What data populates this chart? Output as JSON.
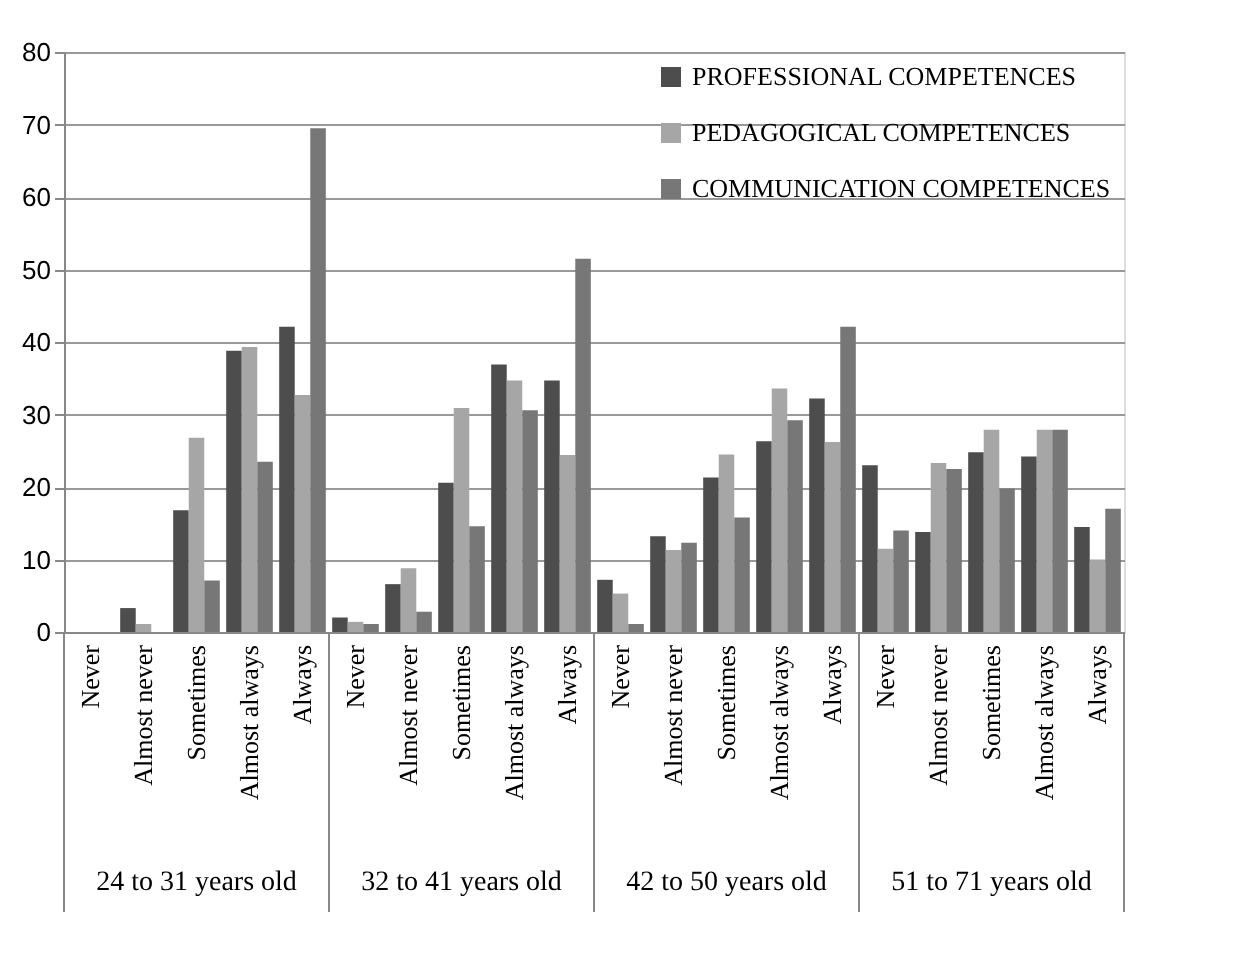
{
  "chart_data": {
    "type": "bar",
    "categories": [
      "Never",
      "Almost never",
      "Sometimes",
      "Almost always",
      "Always",
      "Never",
      "Almost never",
      "Sometimes",
      "Almost always",
      "Always",
      "Never",
      "Almost never",
      "Sometimes",
      "Almost always",
      "Always",
      "Never",
      "Almost never",
      "Sometimes",
      "Almost always",
      "Always"
    ],
    "annotations": [
      "24 to 31 years old",
      "32 to 41 years old",
      "42 to 50 years old",
      "51 to 71 years old"
    ],
    "series": [
      {
        "name": "PROFESSIONAL COMPETENCES",
        "color": "#4d4d4d",
        "values": [
          0,
          3.3,
          16.8,
          38.8,
          42.1,
          2,
          6.6,
          20.6,
          36.9,
          34.7,
          7.2,
          13.2,
          21.3,
          26.3,
          32.2,
          23,
          13.8,
          24.8,
          24.2,
          14.5
        ]
      },
      {
        "name": "PEDAGOGICAL COMPETENCES",
        "color": "#a6a6a6",
        "values": [
          0,
          1.1,
          26.8,
          39.3,
          32.7,
          1.4,
          8.8,
          30.9,
          34.7,
          24.4,
          5.3,
          11.3,
          24.5,
          33.6,
          26.2,
          11.5,
          23.3,
          27.9,
          27.9,
          10
        ]
      },
      {
        "name": "COMMUNICATION COMPETENCES",
        "color": "#777777",
        "values": [
          0,
          0,
          7.1,
          23.5,
          69.5,
          1.1,
          2.8,
          14.6,
          30.6,
          51.5,
          1.1,
          12.3,
          15.8,
          29.2,
          42.1,
          14,
          22.5,
          19.8,
          27.9,
          17
        ]
      }
    ],
    "ylim": [
      0,
      80
    ],
    "yticks": [
      0,
      10,
      20,
      30,
      40,
      50,
      60,
      70,
      80
    ],
    "grid": "y",
    "legend": "top right"
  }
}
